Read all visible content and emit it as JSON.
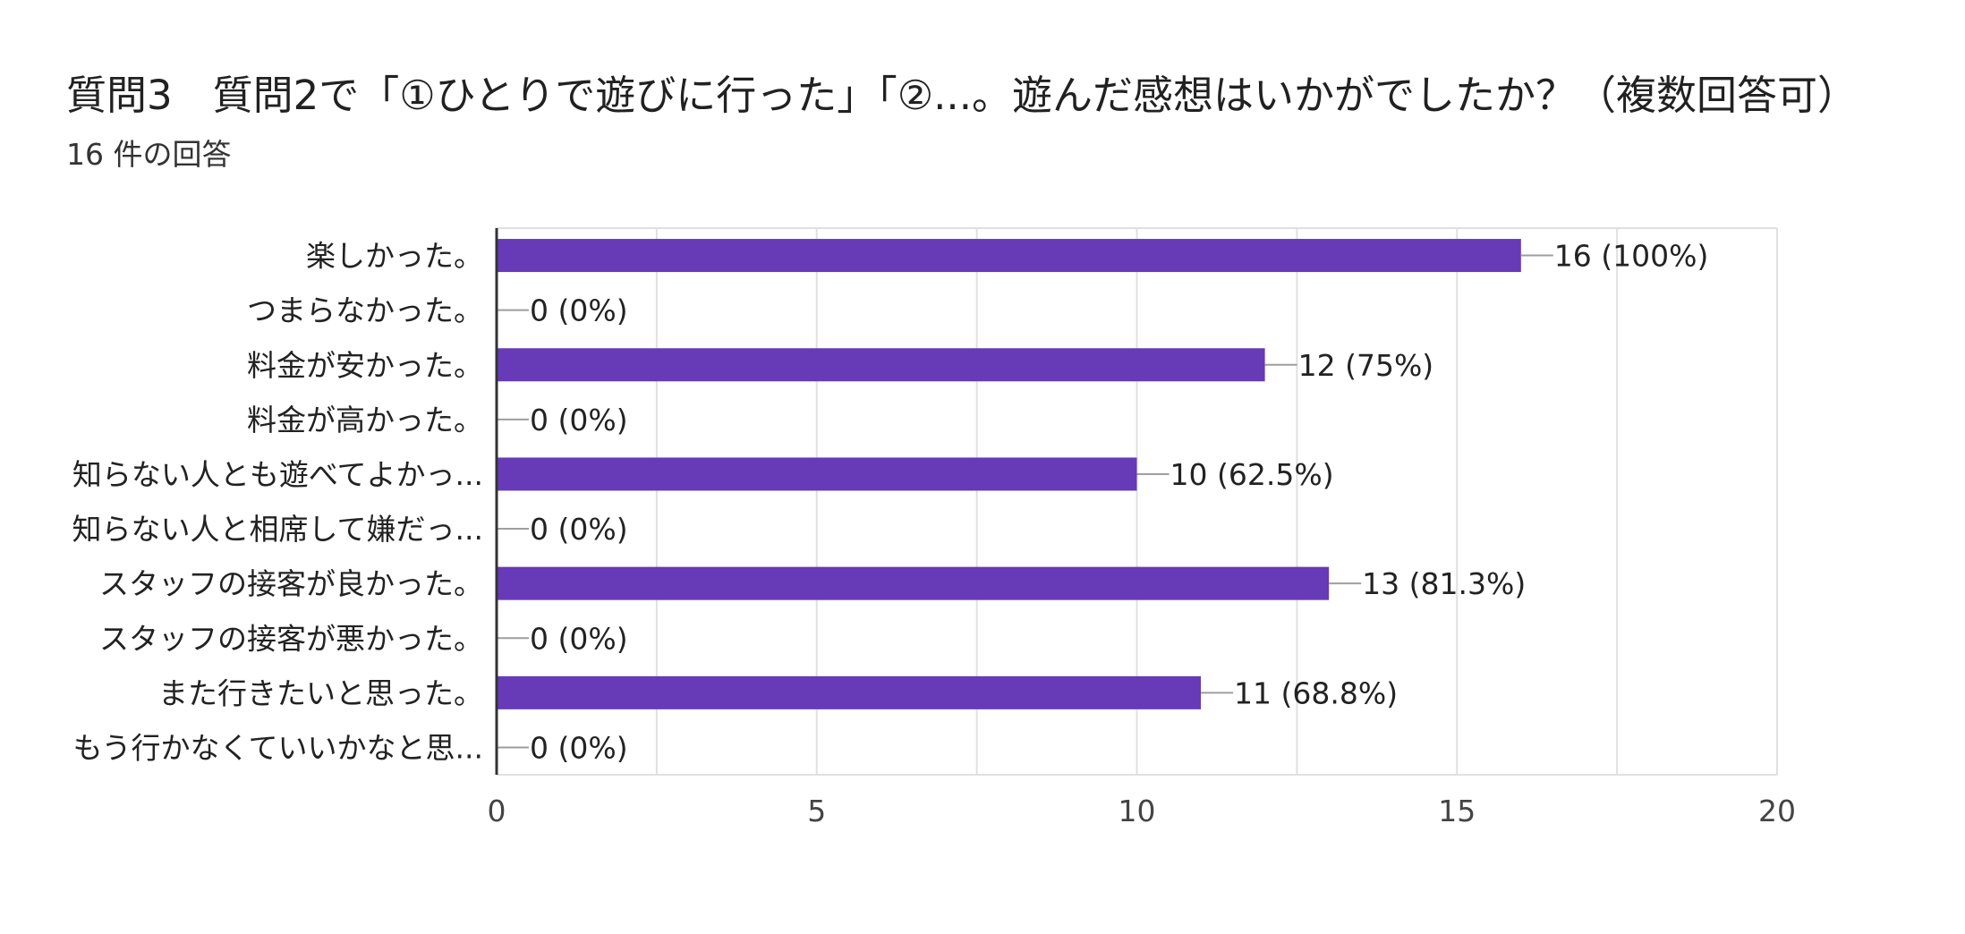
{
  "title": "質問3　質問2で「①ひとりで遊びに行った」「②...。遊んだ感想はいかがでしたか？（複数回答可）",
  "subtitle": "16 件の回答",
  "colors": {
    "bar": "#673ab7",
    "grid": "#e0e0e0",
    "axis": "#333333",
    "leader": "#9e9e9e"
  },
  "chart_data": {
    "type": "bar",
    "orientation": "horizontal",
    "categories": [
      "楽しかった。",
      "つまらなかった。",
      "料金が安かった。",
      "料金が高かった。",
      "知らない人とも遊べてよかっ...",
      "知らない人と相席して嫌だっ...",
      "スタッフの接客が良かった。",
      "スタッフの接客が悪かった。",
      "また行きたいと思った。",
      "もう行かなくていいかなと思..."
    ],
    "values": [
      16,
      0,
      12,
      0,
      10,
      0,
      13,
      0,
      11,
      0
    ],
    "value_labels": [
      "16 (100%)",
      "0 (0%)",
      "12 (75%)",
      "0 (0%)",
      "10 (62.5%)",
      "0 (0%)",
      "13 (81.3%)",
      "0 (0%)",
      "11 (68.8%)",
      "0 (0%)"
    ],
    "xlim": [
      0,
      20
    ],
    "xticks": [
      0,
      5,
      10,
      15,
      20
    ],
    "xtick_labels": [
      "0",
      "5",
      "10",
      "15",
      "20"
    ],
    "grid": true
  }
}
